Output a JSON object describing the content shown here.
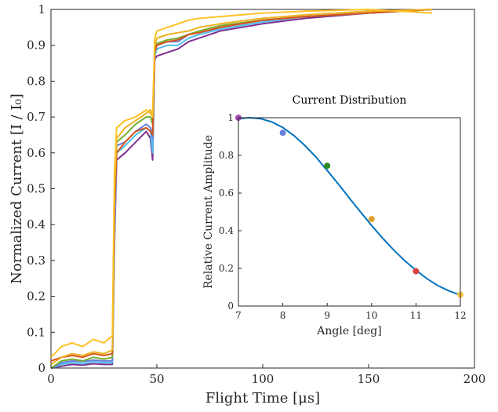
{
  "chart_data": [
    {
      "type": "line",
      "xlabel": "Flight Time [μs]",
      "ylabel": "Normalized Current [I / I₀]",
      "xlim": [
        0,
        200
      ],
      "ylim": [
        0,
        1
      ],
      "xticks": [
        "0",
        "50",
        "100",
        "150",
        "200"
      ],
      "yticks": [
        "0",
        "0.1",
        "0.2",
        "0.3",
        "0.4",
        "0.5",
        "0.6",
        "0.7",
        "0.8",
        "0.9",
        "1"
      ],
      "grid": false,
      "series": [
        {
          "color": "#7E2F8E",
          "x": [
            0,
            5,
            10,
            15,
            20,
            25,
            29,
            30,
            31,
            35,
            40,
            45,
            47,
            48,
            49,
            50,
            55,
            60,
            65,
            70,
            80,
            100,
            120,
            150,
            180
          ],
          "y": [
            0.0,
            0.005,
            0.01,
            0.008,
            0.012,
            0.01,
            0.01,
            0.35,
            0.58,
            0.6,
            0.63,
            0.66,
            0.64,
            0.58,
            0.86,
            0.87,
            0.88,
            0.89,
            0.91,
            0.92,
            0.94,
            0.96,
            0.975,
            0.99,
            1.0
          ]
        },
        {
          "color": "#4DBEEE",
          "x": [
            0,
            5,
            10,
            15,
            20,
            25,
            29,
            30,
            31,
            35,
            40,
            45,
            47,
            48,
            49,
            50,
            55,
            60,
            65,
            70,
            80,
            100,
            120,
            150,
            180
          ],
          "y": [
            0.0,
            0.01,
            0.015,
            0.012,
            0.018,
            0.015,
            0.015,
            0.38,
            0.6,
            0.62,
            0.65,
            0.67,
            0.66,
            0.6,
            0.87,
            0.89,
            0.9,
            0.9,
            0.92,
            0.93,
            0.945,
            0.965,
            0.98,
            0.99,
            1.0
          ]
        },
        {
          "color": "#6A7FDB",
          "x": [
            0,
            5,
            10,
            15,
            20,
            25,
            29,
            30,
            31,
            35,
            40,
            45,
            47,
            48,
            49,
            50,
            55,
            60,
            65,
            70,
            80,
            100,
            120,
            150,
            180
          ],
          "y": [
            0.0,
            0.015,
            0.02,
            0.018,
            0.022,
            0.02,
            0.02,
            0.4,
            0.62,
            0.63,
            0.66,
            0.68,
            0.67,
            0.64,
            0.88,
            0.9,
            0.91,
            0.91,
            0.93,
            0.935,
            0.95,
            0.97,
            0.98,
            0.99,
            1.0
          ]
        },
        {
          "color": "#77AC30",
          "x": [
            0,
            5,
            10,
            15,
            20,
            25,
            29,
            30,
            31,
            35,
            40,
            45,
            47,
            48,
            49,
            50,
            55,
            60,
            65,
            70,
            80,
            100,
            120,
            150,
            180
          ],
          "y": [
            0.0,
            0.02,
            0.025,
            0.02,
            0.03,
            0.025,
            0.03,
            0.45,
            0.63,
            0.65,
            0.68,
            0.7,
            0.7,
            0.68,
            0.89,
            0.905,
            0.915,
            0.92,
            0.93,
            0.94,
            0.955,
            0.97,
            0.98,
            0.99,
            1.0
          ]
        },
        {
          "color": "#D95319",
          "x": [
            0,
            5,
            10,
            15,
            20,
            25,
            29,
            30,
            31,
            35,
            40,
            45,
            47,
            48,
            49,
            50,
            55,
            60,
            65,
            70,
            80,
            100,
            120,
            150,
            180
          ],
          "y": [
            0.02,
            0.03,
            0.035,
            0.03,
            0.04,
            0.035,
            0.04,
            0.45,
            0.6,
            0.63,
            0.66,
            0.67,
            0.66,
            0.65,
            0.88,
            0.9,
            0.91,
            0.915,
            0.93,
            0.935,
            0.95,
            0.97,
            0.98,
            0.99,
            1.0
          ]
        },
        {
          "color": "#EDB120",
          "x": [
            0,
            5,
            10,
            15,
            20,
            25,
            29,
            30,
            31,
            35,
            40,
            45,
            47,
            48,
            49,
            50,
            55,
            60,
            65,
            70,
            80,
            100,
            120,
            150,
            180
          ],
          "y": [
            0.01,
            0.03,
            0.04,
            0.035,
            0.045,
            0.04,
            0.05,
            0.5,
            0.64,
            0.67,
            0.69,
            0.71,
            0.72,
            0.7,
            0.9,
            0.92,
            0.93,
            0.935,
            0.94,
            0.95,
            0.96,
            0.975,
            0.985,
            0.995,
            1.0
          ]
        },
        {
          "color": "#FFC125",
          "x": [
            0,
            5,
            10,
            15,
            20,
            25,
            29,
            30,
            31,
            35,
            40,
            45,
            47,
            48,
            49,
            50,
            55,
            60,
            65,
            70,
            80,
            100,
            120,
            150,
            180
          ],
          "y": [
            0.03,
            0.06,
            0.07,
            0.06,
            0.08,
            0.07,
            0.09,
            0.55,
            0.67,
            0.69,
            0.7,
            0.72,
            0.71,
            0.7,
            0.92,
            0.94,
            0.95,
            0.96,
            0.97,
            0.975,
            0.98,
            0.99,
            0.995,
            1.0,
            0.99
          ]
        }
      ]
    },
    {
      "type": "scatter",
      "title": "Current Distribution",
      "xlabel": "Angle [deg]",
      "ylabel": "Relative Current Amplitude",
      "xlim": [
        7,
        12
      ],
      "ylim": [
        0,
        1
      ],
      "xticks": [
        "7",
        "8",
        "9",
        "10",
        "11",
        "12"
      ],
      "yticks": [
        "0",
        "0.2",
        "0.4",
        "0.6",
        "0.8",
        "1"
      ],
      "fit_color": "#0072BD",
      "fit_x": [
        7,
        7.25,
        7.5,
        7.75,
        8,
        8.25,
        8.5,
        8.75,
        9,
        9.25,
        9.5,
        9.75,
        10,
        10.25,
        10.5,
        10.75,
        11,
        11.25,
        11.5,
        11.75,
        12
      ],
      "fit_y": [
        0.995,
        1.0,
        0.995,
        0.978,
        0.948,
        0.905,
        0.852,
        0.79,
        0.72,
        0.648,
        0.573,
        0.5,
        0.428,
        0.36,
        0.297,
        0.24,
        0.19,
        0.145,
        0.108,
        0.08,
        0.058
      ],
      "points": [
        {
          "x": 7,
          "y": 1.0,
          "color": "#A54BB5"
        },
        {
          "x": 8,
          "y": 0.92,
          "color": "#6A7FDB"
        },
        {
          "x": 9,
          "y": 0.745,
          "color": "#2E8B22"
        },
        {
          "x": 10,
          "y": 0.462,
          "color": "#E0A030"
        },
        {
          "x": 11,
          "y": 0.185,
          "color": "#D94040"
        },
        {
          "x": 12,
          "y": 0.06,
          "color": "#F5C542"
        }
      ]
    }
  ]
}
